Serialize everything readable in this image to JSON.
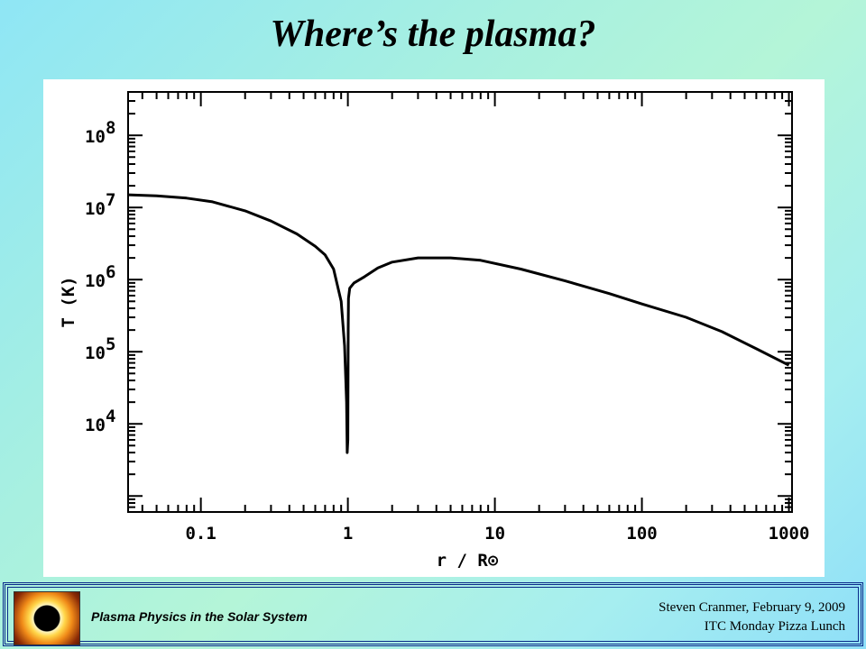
{
  "slide": {
    "title": "Where’s the plasma?"
  },
  "chart_data": {
    "type": "line",
    "xlabel": "r / R⊙",
    "ylabel": "T (K)",
    "x_scale": "log",
    "y_scale": "log",
    "xlim": [
      0.032,
      1050
    ],
    "ylim": [
      600,
      400000000
    ],
    "x_ticks": [
      {
        "value": 0.1,
        "label": "0.1"
      },
      {
        "value": 1,
        "label": "1"
      },
      {
        "value": 10,
        "label": "10"
      },
      {
        "value": 100,
        "label": "100"
      },
      {
        "value": 1000,
        "label": "1000"
      }
    ],
    "y_ticks": [
      {
        "value": 10000,
        "base": "10",
        "exp": "4"
      },
      {
        "value": 100000,
        "base": "10",
        "exp": "5"
      },
      {
        "value": 1000000,
        "base": "10",
        "exp": "6"
      },
      {
        "value": 10000000,
        "base": "10",
        "exp": "7"
      },
      {
        "value": 100000000,
        "base": "10",
        "exp": "8"
      }
    ],
    "grid": false,
    "series": [
      {
        "x": [
          0.032,
          0.05,
          0.08,
          0.12,
          0.2,
          0.3,
          0.45,
          0.6,
          0.7,
          0.8,
          0.9,
          0.95,
          0.98,
          0.99,
          1.0,
          1.005,
          1.01,
          1.03,
          1.1,
          1.3,
          1.6,
          2.0,
          3.0,
          5.0,
          8.0,
          15,
          30,
          60,
          100,
          200,
          350,
          600,
          1000
        ],
        "y": [
          15000000,
          14500000,
          13500000,
          12000000,
          9000000,
          6500000,
          4300000,
          2900000,
          2200000,
          1400000,
          500000,
          120000,
          20000,
          4000,
          6000,
          200000,
          550000,
          760000,
          900000,
          1100000,
          1450000,
          1750000,
          2000000,
          2000000,
          1850000,
          1400000,
          960000,
          640000,
          460000,
          300000,
          190000,
          110000,
          65000
        ]
      }
    ]
  },
  "footer": {
    "course": "Plasma Physics in the Solar System",
    "author_date": "Steven Cranmer,  February 9, 2009",
    "event": "ITC Monday Pizza Lunch"
  }
}
